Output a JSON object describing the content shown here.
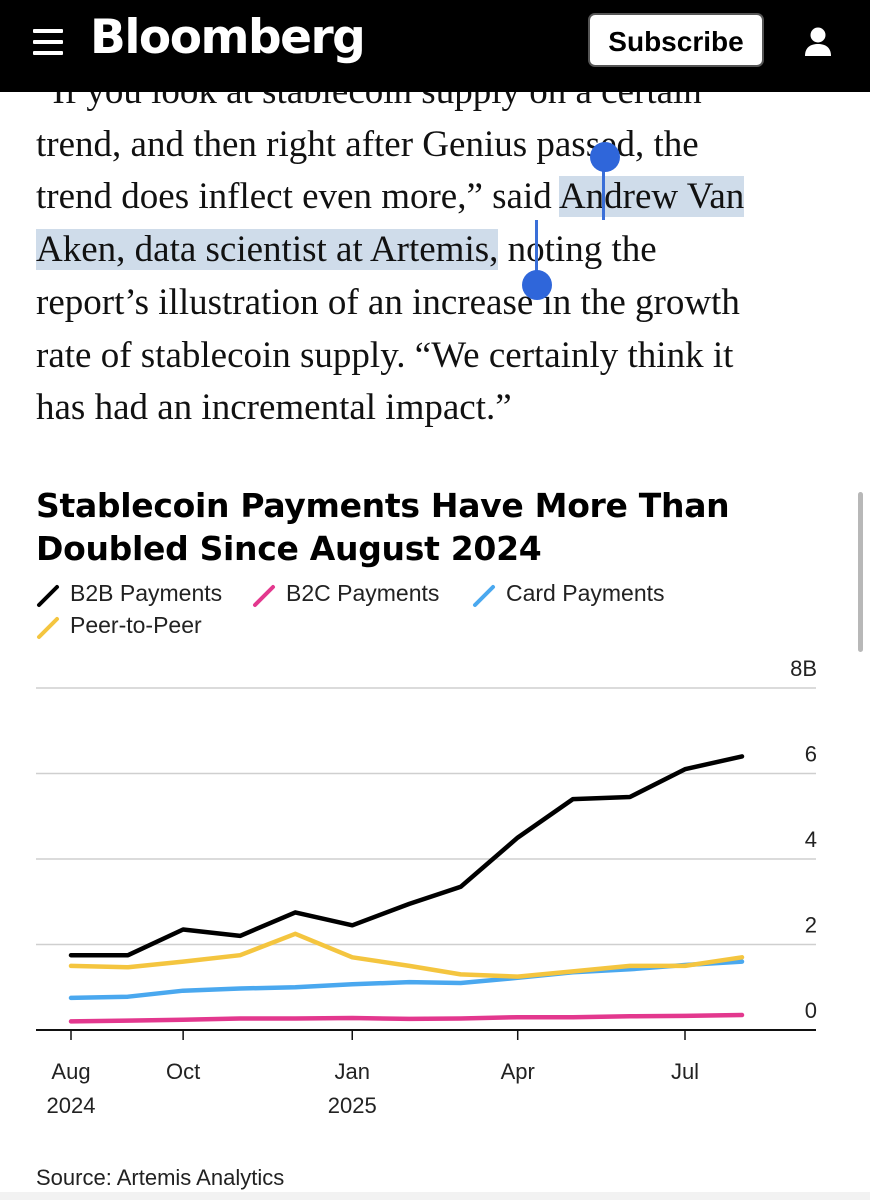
{
  "header": {
    "brand": "Bloomberg",
    "subscribe_label": "Subscribe",
    "menu_icon": "hamburger-menu-icon",
    "account_icon": "user-icon"
  },
  "article": {
    "lines": [
      "“If you look at stablecoin supply on a certain",
      "trend, and then right after Genius passed, the",
      "trend does inflect even more,” said ",
      "Andrew Van",
      "Aken, data scientist at Artemis,",
      " noting the",
      "report’s illustration of an increase in the growth",
      "rate of stablecoin supply. “We certainly think it",
      "has had an incremental impact.”"
    ],
    "selection_color": "#cfdcea",
    "handle_color": "#2f66da"
  },
  "chart_data": {
    "type": "line",
    "title": "Stablecoin Payments Have More Than Doubled Since August 2024",
    "source": "Source: Artemis Analytics",
    "ylabel": "",
    "xlabel": "",
    "y_unit": "B",
    "ylim": [
      0,
      8
    ],
    "y_ticks": [
      "8B",
      "6",
      "4",
      "2",
      "0"
    ],
    "y_tick_values": [
      8,
      6,
      4,
      2,
      0
    ],
    "x_tick_labels": [
      {
        "month": "Aug",
        "year": "2024"
      },
      {
        "month": "Oct",
        "year": ""
      },
      {
        "month": "Jan",
        "year": "2025"
      },
      {
        "month": "Apr",
        "year": ""
      },
      {
        "month": "Jul",
        "year": ""
      }
    ],
    "x_tick_dates": [
      "2024-08-01",
      "2024-10-01",
      "2025-01-01",
      "2025-04-01",
      "2025-07-01"
    ],
    "x_range": [
      "2024-07-01",
      "2025-09-01"
    ],
    "grid": true,
    "legend_position": "top-left",
    "x": [
      "2024-08-01",
      "2024-09-01",
      "2024-10-01",
      "2024-11-01",
      "2024-12-01",
      "2025-01-01",
      "2025-02-01",
      "2025-03-01",
      "2025-04-01",
      "2025-05-01",
      "2025-06-01",
      "2025-07-01",
      "2025-08-01"
    ],
    "series": [
      {
        "name": "B2B Payments",
        "color": "#000000",
        "values": [
          1.75,
          1.75,
          2.35,
          2.2,
          2.75,
          2.45,
          2.95,
          3.35,
          4.5,
          5.4,
          5.45,
          6.1,
          6.4
        ]
      },
      {
        "name": "B2C Payments",
        "color": "#e3388e",
        "values": [
          0.2,
          0.22,
          0.24,
          0.27,
          0.27,
          0.28,
          0.26,
          0.27,
          0.3,
          0.3,
          0.32,
          0.33,
          0.35
        ]
      },
      {
        "name": "Card Payments",
        "color": "#4aa8ef",
        "values": [
          0.75,
          0.78,
          0.92,
          0.97,
          1.0,
          1.07,
          1.12,
          1.1,
          1.22,
          1.35,
          1.42,
          1.52,
          1.6
        ]
      },
      {
        "name": "Peer-to-Peer",
        "color": "#f4c53f",
        "values": [
          1.5,
          1.47,
          1.6,
          1.75,
          2.25,
          1.7,
          1.5,
          1.3,
          1.25,
          1.37,
          1.5,
          1.5,
          1.7
        ]
      }
    ]
  }
}
